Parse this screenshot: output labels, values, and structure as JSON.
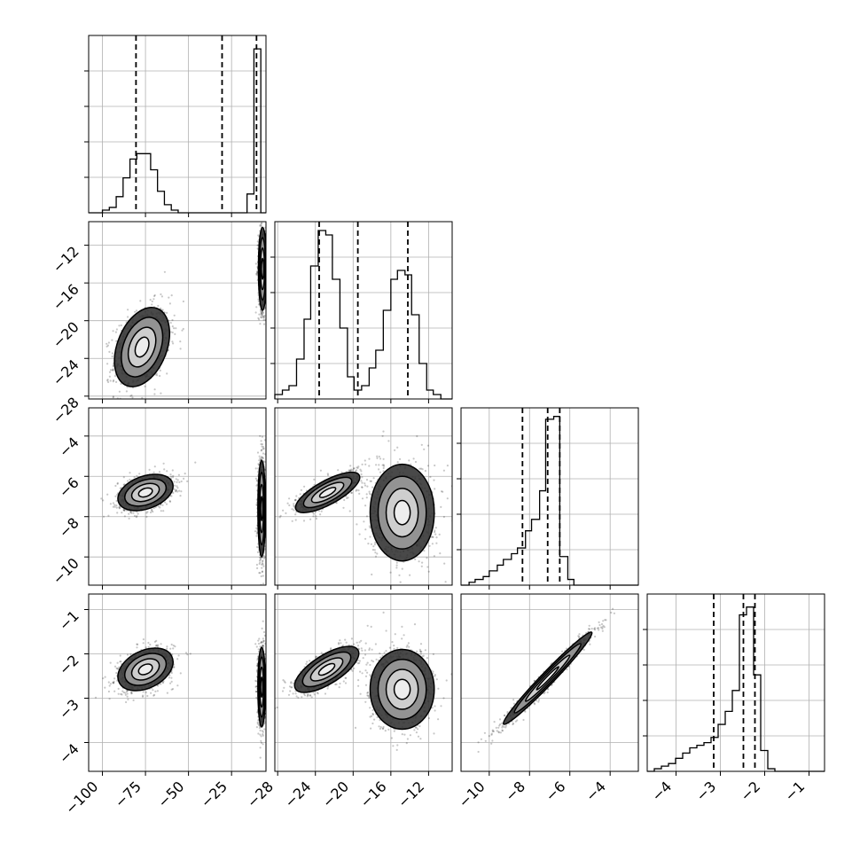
{
  "chart_data": {
    "type": "corner",
    "grid": true,
    "parameters": [
      {
        "range": [
          -108,
          -5
        ],
        "ticks": [
          -100,
          -75,
          -50,
          -25
        ],
        "tick_labels": [
          "−100",
          "−75",
          "−50",
          "−25"
        ]
      },
      {
        "range": [
          -28.3,
          -9.5
        ],
        "ticks": [
          -28,
          -24,
          -20,
          -16,
          -12
        ],
        "tick_labels": [
          "−28",
          "−24",
          "−20",
          "−16",
          "−12"
        ]
      },
      {
        "range": [
          -11.4,
          -2.6
        ],
        "ticks": [
          -10,
          -8,
          -6,
          -4
        ],
        "tick_labels": [
          "−10",
          "−8",
          "−6",
          "−4"
        ]
      },
      {
        "range": [
          -4.65,
          -0.65
        ],
        "ticks": [
          -4,
          -3,
          -2,
          -1
        ],
        "tick_labels": [
          "−4",
          "−3",
          "−2",
          "−1"
        ]
      }
    ],
    "marginals": [
      {
        "quantiles": [
          -80.5,
          -30.5,
          -10.5
        ],
        "step": {
          "edges": [
            -108,
            -104,
            -100,
            -96,
            -92,
            -88,
            -84,
            -80,
            -76,
            -72,
            -68,
            -64,
            -60,
            -56,
            -52,
            -48,
            -44,
            -40,
            -36,
            -32,
            -28,
            -24,
            -20,
            -16,
            -12,
            -8,
            -5
          ],
          "counts": [
            0,
            0,
            1,
            2,
            6,
            13,
            20,
            22,
            22,
            16,
            8,
            3,
            1,
            0,
            0,
            0,
            0,
            0,
            0,
            0,
            0,
            0,
            0,
            7,
            61,
            0
          ]
        },
        "ylim": [
          0,
          66
        ]
      },
      {
        "quantiles": [
          -23.6,
          -19.5,
          -14.2
        ],
        "step": {
          "edges": [
            -28.3,
            -27.5,
            -26.8,
            -26.0,
            -25.2,
            -24.5,
            -23.7,
            -22.9,
            -22.2,
            -21.4,
            -20.6,
            -19.9,
            -19.1,
            -18.3,
            -17.6,
            -16.8,
            -16.0,
            -15.3,
            -14.5,
            -13.8,
            -13.0,
            -12.2,
            -11.5,
            -10.7,
            -9.9,
            -9.5
          ],
          "counts": [
            1,
            2,
            3,
            9,
            18,
            30,
            38,
            37,
            27,
            16,
            5,
            2,
            3,
            7,
            11,
            20,
            27,
            29,
            28,
            19,
            8,
            2,
            1,
            0,
            0
          ]
        },
        "ylim": [
          0,
          40
        ]
      },
      {
        "quantiles": [
          -8.35,
          -7.1,
          -6.5
        ],
        "step": {
          "edges": [
            -11.4,
            -11.0,
            -10.7,
            -10.3,
            -10.0,
            -9.6,
            -9.3,
            -8.9,
            -8.6,
            -8.2,
            -7.9,
            -7.5,
            -7.2,
            -6.8,
            -6.5,
            -6.1,
            -5.8,
            -5.4,
            -5.1,
            -4.7,
            -4.4,
            -4.0,
            -3.7,
            -3.3,
            -3.0,
            -2.6
          ],
          "counts": [
            0,
            1,
            2,
            3,
            5,
            7,
            9,
            11,
            13,
            19,
            23,
            33,
            58,
            59,
            10,
            2,
            0,
            0,
            0,
            0,
            0,
            0,
            0,
            0,
            0
          ]
        },
        "ylim": [
          0,
          62
        ]
      },
      {
        "quantiles": [
          -3.15,
          -2.48,
          -2.22
        ],
        "step": {
          "edges": [
            -4.65,
            -4.49,
            -4.33,
            -4.17,
            -4.01,
            -3.85,
            -3.69,
            -3.53,
            -3.37,
            -3.21,
            -3.05,
            -2.89,
            -2.73,
            -2.57,
            -2.41,
            -2.25,
            -2.09,
            -1.93,
            -1.77,
            -1.61,
            -1.45,
            -1.29,
            -1.13,
            -0.97,
            -0.81,
            -0.65
          ],
          "counts": [
            0,
            1,
            2,
            3,
            5,
            7,
            9,
            10,
            11,
            13,
            18,
            23,
            31,
            60,
            63,
            37,
            8,
            1,
            0,
            0,
            0,
            0,
            0,
            0,
            0
          ]
        },
        "ylim": [
          0,
          68
        ]
      }
    ],
    "pairs": [
      {
        "x_param": 0,
        "y_param": 1,
        "clusters": [
          {
            "cx": -77,
            "cy": -22.8,
            "sx": 8,
            "sy": 2.1,
            "rho": 0.35
          },
          {
            "cx": -7,
            "cy": -14.5,
            "sx": 1.2,
            "sy": 2.2,
            "rho": 0
          }
        ]
      },
      {
        "x_param": 0,
        "y_param": 2,
        "clusters": [
          {
            "cx": -75,
            "cy": -6.8,
            "sx": 8,
            "sy": 0.45,
            "rho": 0.35
          },
          {
            "cx": -7.5,
            "cy": -7.6,
            "sx": 1.1,
            "sy": 1.2,
            "rho": 0
          }
        ]
      },
      {
        "x_param": 0,
        "y_param": 3,
        "clusters": [
          {
            "cx": -75,
            "cy": -2.35,
            "sx": 8,
            "sy": 0.24,
            "rho": 0.35
          },
          {
            "cx": -7.5,
            "cy": -2.75,
            "sx": 1.1,
            "sy": 0.45,
            "rho": 0
          }
        ]
      },
      {
        "x_param": 1,
        "y_param": 2,
        "clusters": [
          {
            "cx": -22.7,
            "cy": -6.8,
            "sx": 1.7,
            "sy": 0.5,
            "rho": 0.75
          },
          {
            "cx": -14.8,
            "cy": -7.8,
            "sx": 1.7,
            "sy": 1.2,
            "rho": 0
          }
        ]
      },
      {
        "x_param": 1,
        "y_param": 3,
        "clusters": [
          {
            "cx": -22.8,
            "cy": -2.35,
            "sx": 1.7,
            "sy": 0.26,
            "rho": 0.7
          },
          {
            "cx": -14.8,
            "cy": -2.8,
            "sx": 1.7,
            "sy": 0.45,
            "rho": 0
          }
        ]
      },
      {
        "x_param": 2,
        "y_param": 3,
        "clusters": [
          {
            "cx": -7.1,
            "cy": -2.55,
            "sx": 1.1,
            "sy": 0.52,
            "rho": 0.98
          }
        ]
      }
    ],
    "contour_levels": [
      0.5,
      1.0,
      1.5,
      2.0
    ]
  }
}
